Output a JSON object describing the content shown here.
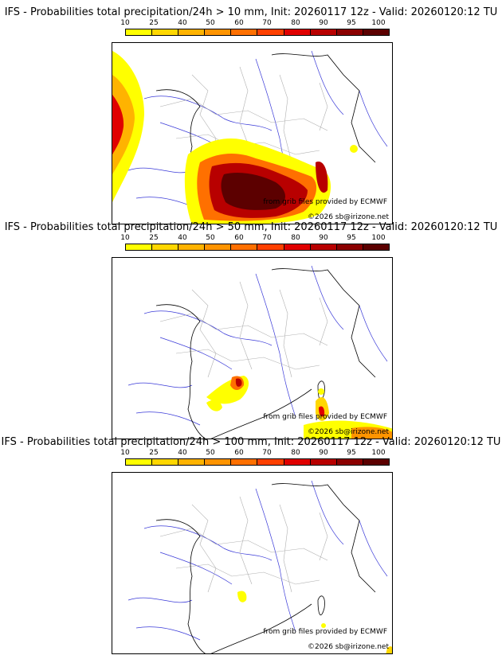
{
  "legend": {
    "ticks": [
      "10",
      "25",
      "40",
      "50",
      "60",
      "70",
      "80",
      "90",
      "95",
      "100"
    ],
    "colors": [
      "#ffff00",
      "#ffd700",
      "#ffb300",
      "#ff9400",
      "#ff7000",
      "#ff4000",
      "#e00000",
      "#b80000",
      "#8b0000",
      "#5c0000"
    ]
  },
  "credits": {
    "source": "from grib files provided by ECMWF",
    "copyright": "©2026 sb@irizone.net"
  },
  "panels": [
    {
      "title": "IFS - Probabilities total precipitation/24h > 10 mm, Init: 20260117 12z - Valid: 20260120:12 TU"
    },
    {
      "title": "IFS - Probabilities total precipitation/24h > 50 mm, Init: 20260117 12z - Valid: 20260120:12 TU"
    },
    {
      "title": "IFS - Probabilities total precipitation/24h > 100 mm, Init: 20260117 12z - Valid: 20260120:12 TU"
    }
  ]
}
